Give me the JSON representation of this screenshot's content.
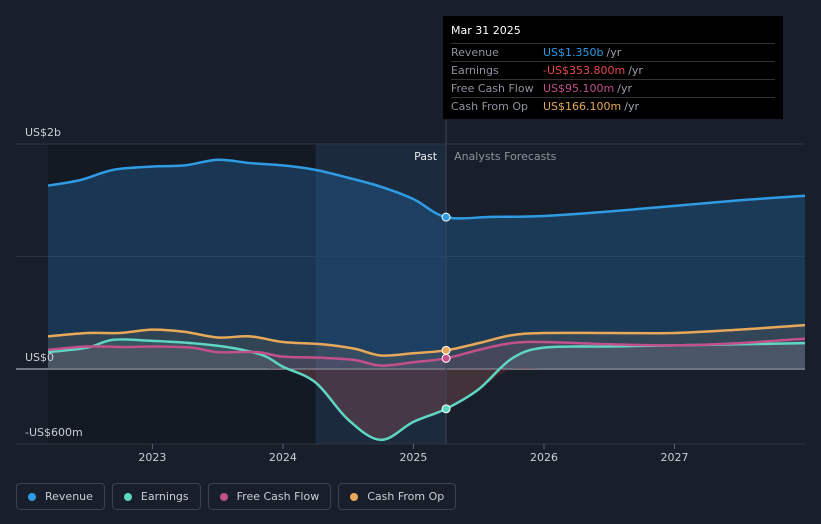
{
  "tooltip": {
    "date": "Mar 31 2025",
    "rows": [
      {
        "label": "Revenue",
        "value": "US$1.350b",
        "unit": "/yr",
        "color": "#2f9be3"
      },
      {
        "label": "Earnings",
        "value": "-US$353.800m",
        "unit": "/yr",
        "color": "#e8494f"
      },
      {
        "label": "Free Cash Flow",
        "value": "US$95.100m",
        "unit": "/yr",
        "color": "#c2508a"
      },
      {
        "label": "Cash From Op",
        "value": "US$166.100m",
        "unit": "/yr",
        "color": "#e8a85a"
      }
    ]
  },
  "chart_data": {
    "type": "line",
    "y_unit": "US$ millions",
    "ylim": [
      -600,
      2000
    ],
    "y_ticks": [
      {
        "value": 2000,
        "label": "US$2b"
      },
      {
        "value": 0,
        "label": "US$0"
      },
      {
        "value": -600,
        "label": "-US$600m"
      }
    ],
    "x_range": [
      2022.2,
      2028.0
    ],
    "x_ticks": [
      {
        "value": 2023,
        "label": "2023"
      },
      {
        "value": 2024,
        "label": "2024"
      },
      {
        "value": 2025,
        "label": "2025"
      },
      {
        "value": 2026,
        "label": "2026"
      },
      {
        "value": 2027,
        "label": "2027"
      }
    ],
    "past_label": "Past",
    "forecast_label": "Analysts Forecasts",
    "divider_x": 2025.25,
    "past_shade_start": 2024.25,
    "series": [
      {
        "name": "Revenue",
        "color": "#2f9be3",
        "points": [
          [
            2022.2,
            1630
          ],
          [
            2022.45,
            1680
          ],
          [
            2022.7,
            1770
          ],
          [
            2023.0,
            1800
          ],
          [
            2023.25,
            1810
          ],
          [
            2023.5,
            1860
          ],
          [
            2023.75,
            1830
          ],
          [
            2024.0,
            1810
          ],
          [
            2024.25,
            1770
          ],
          [
            2024.5,
            1700
          ],
          [
            2024.75,
            1620
          ],
          [
            2025.0,
            1510
          ],
          [
            2025.25,
            1350
          ],
          [
            2025.6,
            1352
          ],
          [
            2026.0,
            1360
          ],
          [
            2026.5,
            1400
          ],
          [
            2027.0,
            1450
          ],
          [
            2027.5,
            1500
          ],
          [
            2028.0,
            1540
          ]
        ]
      },
      {
        "name": "Earnings",
        "color": "#5ed6c2",
        "points": [
          [
            2022.2,
            150
          ],
          [
            2022.5,
            190
          ],
          [
            2022.7,
            260
          ],
          [
            2023.0,
            250
          ],
          [
            2023.3,
            230
          ],
          [
            2023.6,
            190
          ],
          [
            2023.85,
            120
          ],
          [
            2024.0,
            20
          ],
          [
            2024.25,
            -120
          ],
          [
            2024.5,
            -450
          ],
          [
            2024.75,
            -630
          ],
          [
            2025.0,
            -470
          ],
          [
            2025.25,
            -354
          ],
          [
            2025.5,
            -180
          ],
          [
            2025.75,
            90
          ],
          [
            2026.0,
            190
          ],
          [
            2026.5,
            200
          ],
          [
            2027.0,
            210
          ],
          [
            2027.5,
            220
          ],
          [
            2028.0,
            230
          ]
        ]
      },
      {
        "name": "Free Cash Flow",
        "color": "#c2508a",
        "points": [
          [
            2022.2,
            170
          ],
          [
            2022.5,
            200
          ],
          [
            2022.8,
            195
          ],
          [
            2023.0,
            200
          ],
          [
            2023.3,
            190
          ],
          [
            2023.5,
            150
          ],
          [
            2023.8,
            150
          ],
          [
            2024.0,
            110
          ],
          [
            2024.3,
            100
          ],
          [
            2024.55,
            80
          ],
          [
            2024.75,
            30
          ],
          [
            2025.0,
            60
          ],
          [
            2025.25,
            95
          ],
          [
            2025.5,
            170
          ],
          [
            2025.75,
            230
          ],
          [
            2026.0,
            240
          ],
          [
            2026.5,
            220
          ],
          [
            2027.0,
            210
          ],
          [
            2027.5,
            230
          ],
          [
            2028.0,
            270
          ]
        ]
      },
      {
        "name": "Cash From Op",
        "color": "#e8a85a",
        "points": [
          [
            2022.2,
            290
          ],
          [
            2022.5,
            320
          ],
          [
            2022.75,
            320
          ],
          [
            2023.0,
            350
          ],
          [
            2023.25,
            330
          ],
          [
            2023.5,
            280
          ],
          [
            2023.75,
            290
          ],
          [
            2024.0,
            240
          ],
          [
            2024.3,
            220
          ],
          [
            2024.55,
            180
          ],
          [
            2024.75,
            120
          ],
          [
            2025.0,
            140
          ],
          [
            2025.25,
            166
          ],
          [
            2025.5,
            230
          ],
          [
            2025.75,
            300
          ],
          [
            2026.0,
            320
          ],
          [
            2026.5,
            320
          ],
          [
            2027.0,
            320
          ],
          [
            2027.5,
            350
          ],
          [
            2028.0,
            390
          ]
        ]
      }
    ]
  },
  "legend": [
    {
      "label": "Revenue",
      "color": "#2f9be3"
    },
    {
      "label": "Earnings",
      "color": "#5ed6c2"
    },
    {
      "label": "Free Cash Flow",
      "color": "#c2508a"
    },
    {
      "label": "Cash From Op",
      "color": "#e8a85a"
    }
  ]
}
